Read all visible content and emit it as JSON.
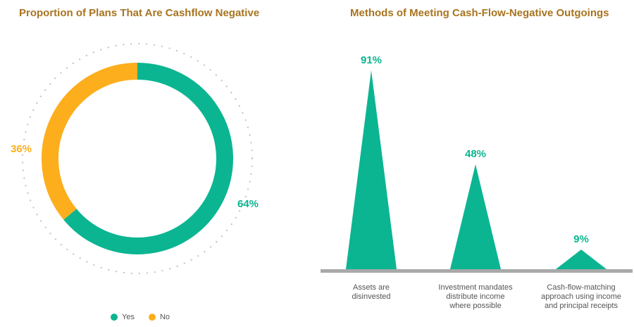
{
  "colors": {
    "yes": "#0bb591",
    "no": "#fdae1c",
    "title": "#a8741f",
    "baseline": "#a9a9a9"
  },
  "chart_data": [
    {
      "type": "pie",
      "title": "Proportion of Plans That Are Cashflow Negative",
      "slices": [
        {
          "name": "Yes",
          "value": 64,
          "label": "64%"
        },
        {
          "name": "No",
          "value": 36,
          "label": "36%"
        }
      ],
      "legend": [
        "Yes",
        "No"
      ],
      "legend_position": "bottom"
    },
    {
      "type": "bar",
      "title": "Methods of Meeting Cash-Flow-Negative Outgoings",
      "categories": [
        [
          "Assets are",
          "disinvested"
        ],
        [
          "Investment mandates",
          "distribute income",
          "where possible"
        ],
        [
          "Cash-flow-matching",
          "approach using income",
          "and principal receipts"
        ]
      ],
      "values": [
        91,
        48,
        9
      ],
      "labels": [
        "91%",
        "48%",
        "9%"
      ],
      "ylim": [
        0,
        100
      ]
    }
  ]
}
